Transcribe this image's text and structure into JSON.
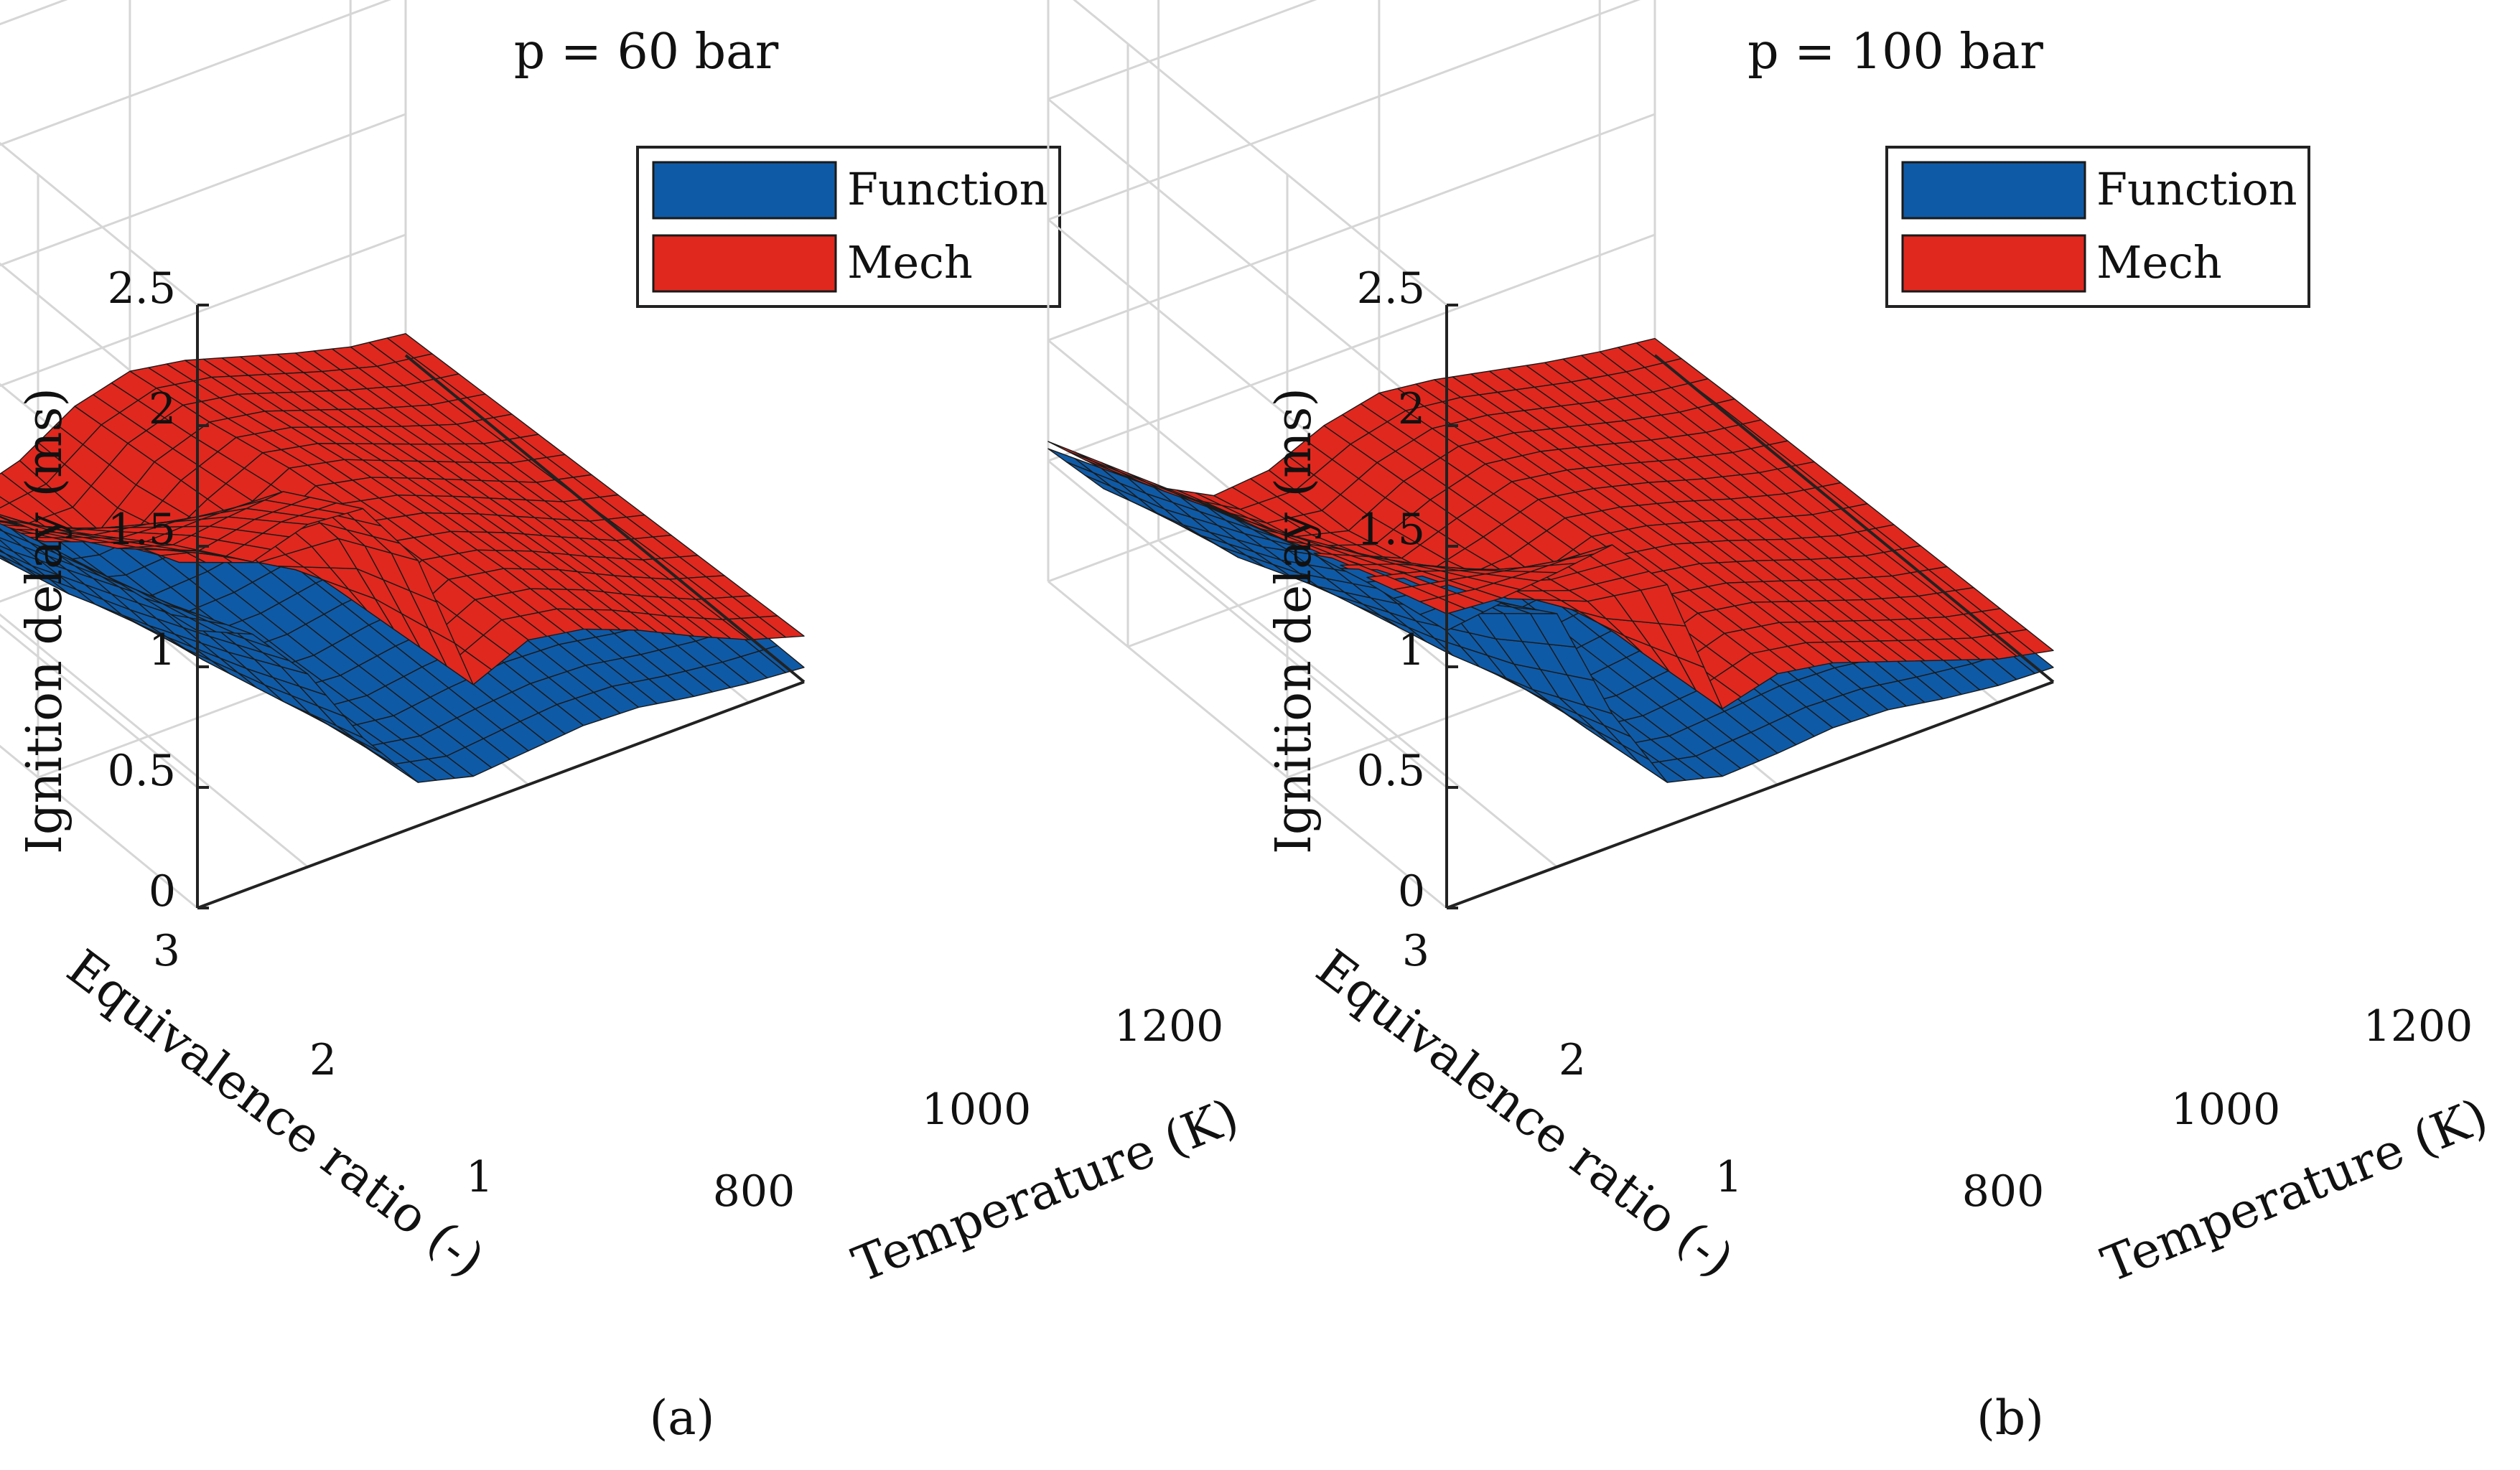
{
  "figure": {
    "captions": [
      "(a)",
      "(b)"
    ]
  },
  "chart_data": [
    {
      "type": "surface",
      "title": "p = 60 bar",
      "xlabel": "Temperature (K)",
      "ylabel": "Equivalence ratio (-)",
      "zlabel": "Ignition delay (ms)",
      "xlim": [
        700,
        1250
      ],
      "ylim": [
        0.5,
        3
      ],
      "zlim": [
        0,
        2.5
      ],
      "xticks": [
        800,
        1000,
        1200
      ],
      "yticks": [
        1,
        2,
        3
      ],
      "zticks": [
        0,
        0.5,
        1,
        1.5,
        2,
        2.5
      ],
      "xtick_labels": [
        "800",
        "1000",
        "1200"
      ],
      "ytick_labels": [
        "1",
        "2",
        "3"
      ],
      "ztick_labels": [
        "0",
        "0.5",
        "1",
        "1.5",
        "2",
        "2.5"
      ],
      "grid": true,
      "legend": {
        "position": "top-right",
        "entries": [
          "Function",
          "Mech"
        ]
      },
      "colors": {
        "Function": "#0f5aa6",
        "Mech": "#e0281e"
      },
      "temperature": [
        700,
        750,
        800,
        850,
        900,
        950,
        1000,
        1050,
        1100,
        1150,
        1200,
        1250
      ],
      "equivalence_ratio": [
        0.5,
        1.0,
        1.5,
        2.0,
        2.5,
        3.0
      ],
      "series": [
        {
          "name": "Function",
          "values": [
            [
              0.64,
              0.35,
              0.15,
              0.05,
              0.03,
              0.05,
              0.09,
              0.11,
              0.1,
              0.07,
              0.05,
              0.04
            ],
            [
              0.74,
              0.45,
              0.22,
              0.09,
              0.04,
              0.06,
              0.1,
              0.12,
              0.11,
              0.08,
              0.06,
              0.04
            ],
            [
              0.86,
              0.58,
              0.32,
              0.15,
              0.06,
              0.07,
              0.11,
              0.13,
              0.12,
              0.09,
              0.06,
              0.05
            ],
            [
              0.98,
              0.74,
              0.46,
              0.23,
              0.09,
              0.08,
              0.12,
              0.14,
              0.13,
              0.1,
              0.07,
              0.05
            ],
            [
              1.08,
              0.9,
              0.62,
              0.33,
              0.13,
              0.1,
              0.13,
              0.15,
              0.14,
              0.1,
              0.07,
              0.06
            ],
            [
              1.15,
              1.05,
              0.8,
              0.45,
              0.18,
              0.12,
              0.14,
              0.16,
              0.15,
              0.11,
              0.08,
              0.06
            ]
          ]
        },
        {
          "name": "Mech",
          "values": [
            [
              0.55,
              0.33,
              0.18,
              0.09,
              0.16,
              0.3,
              0.36,
              0.32,
              0.25,
              0.18,
              0.12,
              0.09
            ],
            [
              0.72,
              0.48,
              0.32,
              0.18,
              0.14,
              0.34,
              0.42,
              0.38,
              0.3,
              0.22,
              0.15,
              0.11
            ],
            [
              0.88,
              0.7,
              0.58,
              0.45,
              0.28,
              0.38,
              0.5,
              0.45,
              0.36,
              0.27,
              0.18,
              0.13
            ],
            [
              1.02,
              0.92,
              0.88,
              0.82,
              0.55,
              0.42,
              0.55,
              0.5,
              0.41,
              0.31,
              0.21,
              0.15
            ],
            [
              1.22,
              1.15,
              1.18,
              1.2,
              0.92,
              0.46,
              0.58,
              0.54,
              0.45,
              0.34,
              0.24,
              0.17
            ],
            [
              1.48,
              1.35,
              1.42,
              1.4,
              1.1,
              0.5,
              0.6,
              0.56,
              0.47,
              0.36,
              0.26,
              0.19
            ]
          ]
        }
      ]
    },
    {
      "type": "surface",
      "title": "p = 100 bar",
      "xlabel": "Temperature (K)",
      "ylabel": "Equivalence ratio (-)",
      "zlabel": "Ignition delay (ms)",
      "xlim": [
        700,
        1250
      ],
      "ylim": [
        0.5,
        3
      ],
      "zlim": [
        0,
        2.5
      ],
      "xticks": [
        800,
        1000,
        1200
      ],
      "yticks": [
        1,
        2,
        3
      ],
      "zticks": [
        0,
        0.5,
        1,
        1.5,
        2,
        2.5
      ],
      "xtick_labels": [
        "800",
        "1000",
        "1200"
      ],
      "ytick_labels": [
        "1",
        "2",
        "3"
      ],
      "ztick_labels": [
        "0",
        "0.5",
        "1",
        "1.5",
        "2",
        "2.5"
      ],
      "grid": true,
      "legend": {
        "position": "top-right",
        "entries": [
          "Function",
          "Mech"
        ]
      },
      "colors": {
        "Function": "#0f5aa6",
        "Mech": "#e0281e"
      },
      "temperature": [
        700,
        750,
        800,
        850,
        900,
        950,
        1000,
        1050,
        1100,
        1150,
        1200,
        1250
      ],
      "equivalence_ratio": [
        0.5,
        1.0,
        1.5,
        2.0,
        2.5,
        3.0
      ],
      "series": [
        {
          "name": "Function",
          "values": [
            [
              0.55,
              0.3,
              0.12,
              0.04,
              0.03,
              0.05,
              0.08,
              0.1,
              0.09,
              0.07,
              0.05,
              0.04
            ],
            [
              0.7,
              0.42,
              0.2,
              0.08,
              0.04,
              0.06,
              0.09,
              0.11,
              0.1,
              0.08,
              0.05,
              0.04
            ],
            [
              0.85,
              0.6,
              0.35,
              0.15,
              0.06,
              0.07,
              0.1,
              0.12,
              0.11,
              0.08,
              0.06,
              0.05
            ],
            [
              0.98,
              0.82,
              0.55,
              0.25,
              0.09,
              0.08,
              0.11,
              0.13,
              0.12,
              0.09,
              0.06,
              0.05
            ],
            [
              1.08,
              1.02,
              0.78,
              0.38,
              0.13,
              0.1,
              0.12,
              0.14,
              0.13,
              0.1,
              0.07,
              0.05
            ],
            [
              1.15,
              1.18,
              1.05,
              0.55,
              0.18,
              0.12,
              0.13,
              0.15,
              0.14,
              0.1,
              0.07,
              0.06
            ]
          ]
        },
        {
          "name": "Mech",
          "values": [
            [
              0.58,
              0.38,
              0.22,
              0.1,
              0.12,
              0.22,
              0.27,
              0.24,
              0.19,
              0.14,
              0.1,
              0.07
            ],
            [
              0.72,
              0.52,
              0.36,
              0.2,
              0.14,
              0.26,
              0.32,
              0.29,
              0.23,
              0.17,
              0.12,
              0.09
            ],
            [
              0.86,
              0.68,
              0.52,
              0.36,
              0.24,
              0.3,
              0.37,
              0.33,
              0.27,
              0.2,
              0.14,
              0.1
            ],
            [
              0.98,
              0.86,
              0.72,
              0.58,
              0.4,
              0.33,
              0.41,
              0.37,
              0.3,
              0.22,
              0.15,
              0.11
            ],
            [
              1.1,
              1.04,
              0.96,
              0.88,
              0.66,
              0.36,
              0.44,
              0.4,
              0.32,
              0.24,
              0.17,
              0.12
            ],
            [
              1.22,
              1.2,
              1.22,
              1.25,
              1.0,
              0.4,
              0.46,
              0.42,
              0.34,
              0.26,
              0.18,
              0.13
            ]
          ]
        }
      ]
    }
  ]
}
